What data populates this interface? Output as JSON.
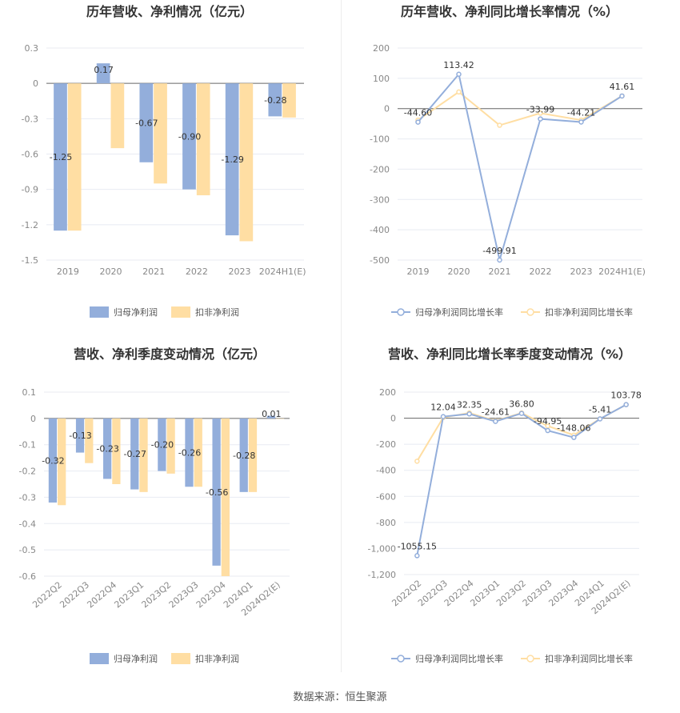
{
  "colors": {
    "primary": "#93aedb",
    "secondary": "#ffdea3",
    "grid": "#e8ebf2",
    "axis": "#666666"
  },
  "footer": "数据来源：恒生聚源",
  "chart_data": [
    {
      "type": "bar",
      "title": "历年营收、净利情况（亿元）",
      "categories": [
        "2019",
        "2020",
        "2021",
        "2022",
        "2023",
        "2024H1(E)"
      ],
      "series": [
        {
          "name": "归母净利润",
          "values": [
            -1.25,
            0.17,
            -0.67,
            -0.9,
            -1.29,
            -0.28
          ],
          "labels": [
            "-1.25",
            "0.17",
            "-0.67",
            "-0.90",
            "-1.29",
            "-0.28"
          ]
        },
        {
          "name": "扣非净利润",
          "values": [
            -1.25,
            -0.55,
            -0.85,
            -0.95,
            -1.34,
            -0.29
          ]
        }
      ],
      "yticks": [
        "0.3",
        "0",
        "-0.3",
        "-0.6",
        "-0.9",
        "-1.2",
        "-1.5"
      ],
      "ylim": [
        -1.5,
        0.3
      ],
      "grid": true,
      "legend": "bottom"
    },
    {
      "type": "line",
      "title": "历年营收、净利同比增长率情况（%）",
      "categories": [
        "2019",
        "2020",
        "2021",
        "2022",
        "2023",
        "2024H1(E)"
      ],
      "series": [
        {
          "name": "归母净利润同比增长率",
          "values": [
            -44.6,
            113.42,
            -499.91,
            -33.99,
            -44.21,
            41.61
          ],
          "labels": [
            "-44.60",
            "113.42",
            "-499.91",
            "-33.99",
            "-44.21",
            "41.61"
          ]
        },
        {
          "name": "扣非净利润同比增长率",
          "values": [
            -38,
            55,
            -55,
            -15,
            -38,
            41.61
          ]
        }
      ],
      "yticks": [
        "200",
        "100",
        "0",
        "-100",
        "-200",
        "-300",
        "-400",
        "-500"
      ],
      "ylim": [
        -500,
        200
      ],
      "grid": true,
      "legend": "bottom"
    },
    {
      "type": "bar",
      "title": "营收、净利季度变动情况（亿元）",
      "categories": [
        "2022Q2",
        "2022Q3",
        "2022Q4",
        "2023Q1",
        "2023Q2",
        "2023Q3",
        "2023Q4",
        "2024Q1",
        "2024Q2(E)"
      ],
      "series": [
        {
          "name": "归母净利润",
          "values": [
            -0.32,
            -0.13,
            -0.23,
            -0.27,
            -0.2,
            -0.26,
            -0.56,
            -0.28,
            0.01
          ],
          "labels": [
            "-0.32",
            "-0.13",
            "-0.23",
            "-0.27",
            "-0.20",
            "-0.26",
            "-0.56",
            "-0.28",
            "0.01"
          ]
        },
        {
          "name": "扣非净利润",
          "values": [
            -0.33,
            -0.17,
            -0.25,
            -0.28,
            -0.21,
            -0.26,
            -0.6,
            -0.28,
            0.0
          ]
        }
      ],
      "yticks": [
        "0.1",
        "0",
        "-0.1",
        "-0.2",
        "-0.3",
        "-0.4",
        "-0.5",
        "-0.6"
      ],
      "ylim": [
        -0.6,
        0.1
      ],
      "grid": true,
      "legend": "bottom"
    },
    {
      "type": "line",
      "title": "营收、净利同比增长率季度变动情况（%）",
      "categories": [
        "2022Q2",
        "2022Q3",
        "2022Q4",
        "2023Q1",
        "2023Q2",
        "2023Q3",
        "2023Q4",
        "2024Q1",
        "2024Q2(E)"
      ],
      "series": [
        {
          "name": "归母净利润同比增长率",
          "values": [
            -1055.15,
            12.04,
            32.35,
            -24.61,
            36.8,
            -94.95,
            -148.06,
            -5.41,
            103.78
          ],
          "labels": [
            "-1055.15",
            "12.04",
            "32.35",
            "-24.61",
            "36.80",
            "-94.95",
            "-148.06",
            "-5.41",
            "103.78"
          ]
        },
        {
          "name": "扣非净利润同比增长率",
          "values": [
            -330,
            5,
            40,
            -20,
            40,
            -60,
            -130,
            -5,
            103.78
          ]
        }
      ],
      "yticks": [
        "200",
        "0",
        "-200",
        "-400",
        "-600",
        "-800",
        "-1,000",
        "-1,200"
      ],
      "ylim": [
        -1200,
        200
      ],
      "grid": true,
      "legend": "bottom"
    }
  ]
}
